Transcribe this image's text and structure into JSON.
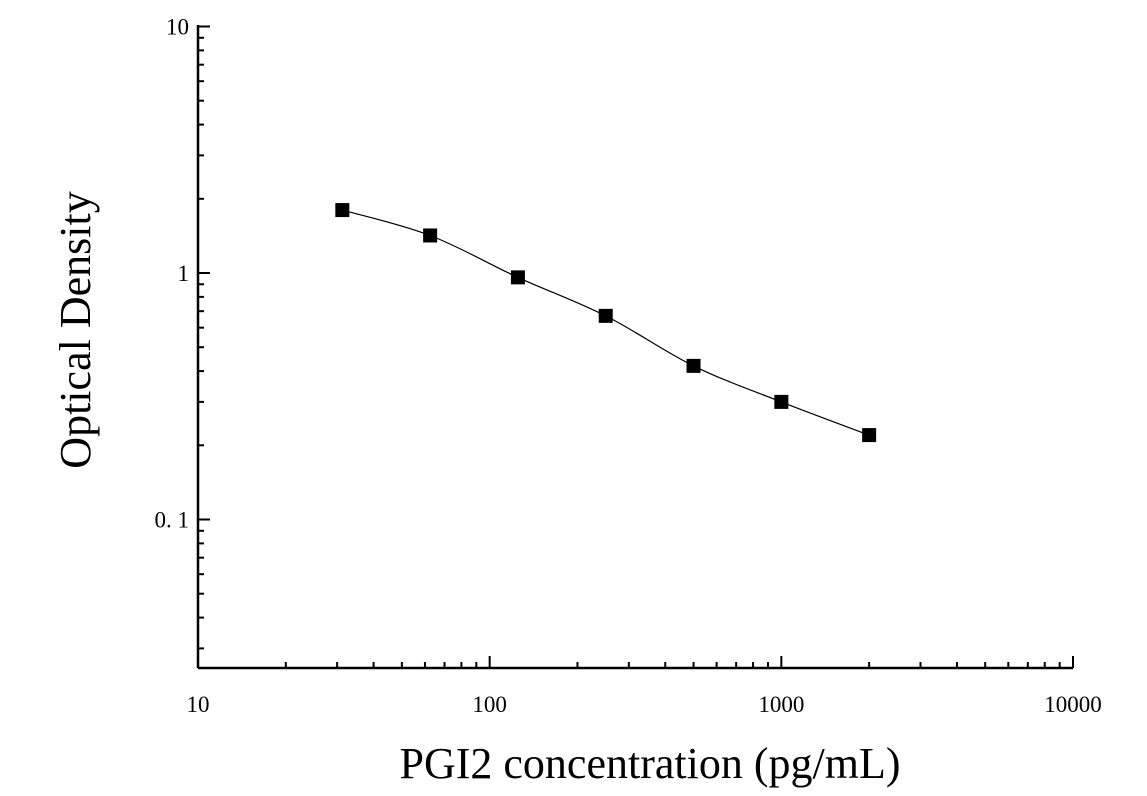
{
  "chart_data": {
    "type": "scatter",
    "xlabel": "PGI2 concentration (pg/mL)",
    "ylabel": "Optical Density",
    "x_scale": "log",
    "y_scale": "log",
    "xlim": [
      10,
      10000
    ],
    "ylim": [
      0.025,
      10
    ],
    "x_ticks": [
      {
        "value": 10,
        "label": "10"
      },
      {
        "value": 100,
        "label": "100"
      },
      {
        "value": 1000,
        "label": "1000"
      },
      {
        "value": 10000,
        "label": "10000"
      }
    ],
    "y_ticks": [
      {
        "value": 0.1,
        "label": "0. 1"
      },
      {
        "value": 1,
        "label": "1"
      },
      {
        "value": 10,
        "label": "10"
      }
    ],
    "grid": false,
    "series": [
      {
        "marker": "square",
        "color": "#000000",
        "x": [
          31.25,
          62.5,
          125,
          250,
          500,
          1000,
          2000
        ],
        "y": [
          1.8,
          1.42,
          0.96,
          0.67,
          0.42,
          0.3,
          0.22
        ]
      }
    ],
    "fit_curve": {
      "style": "smooth line through points",
      "color": "#000000"
    }
  }
}
